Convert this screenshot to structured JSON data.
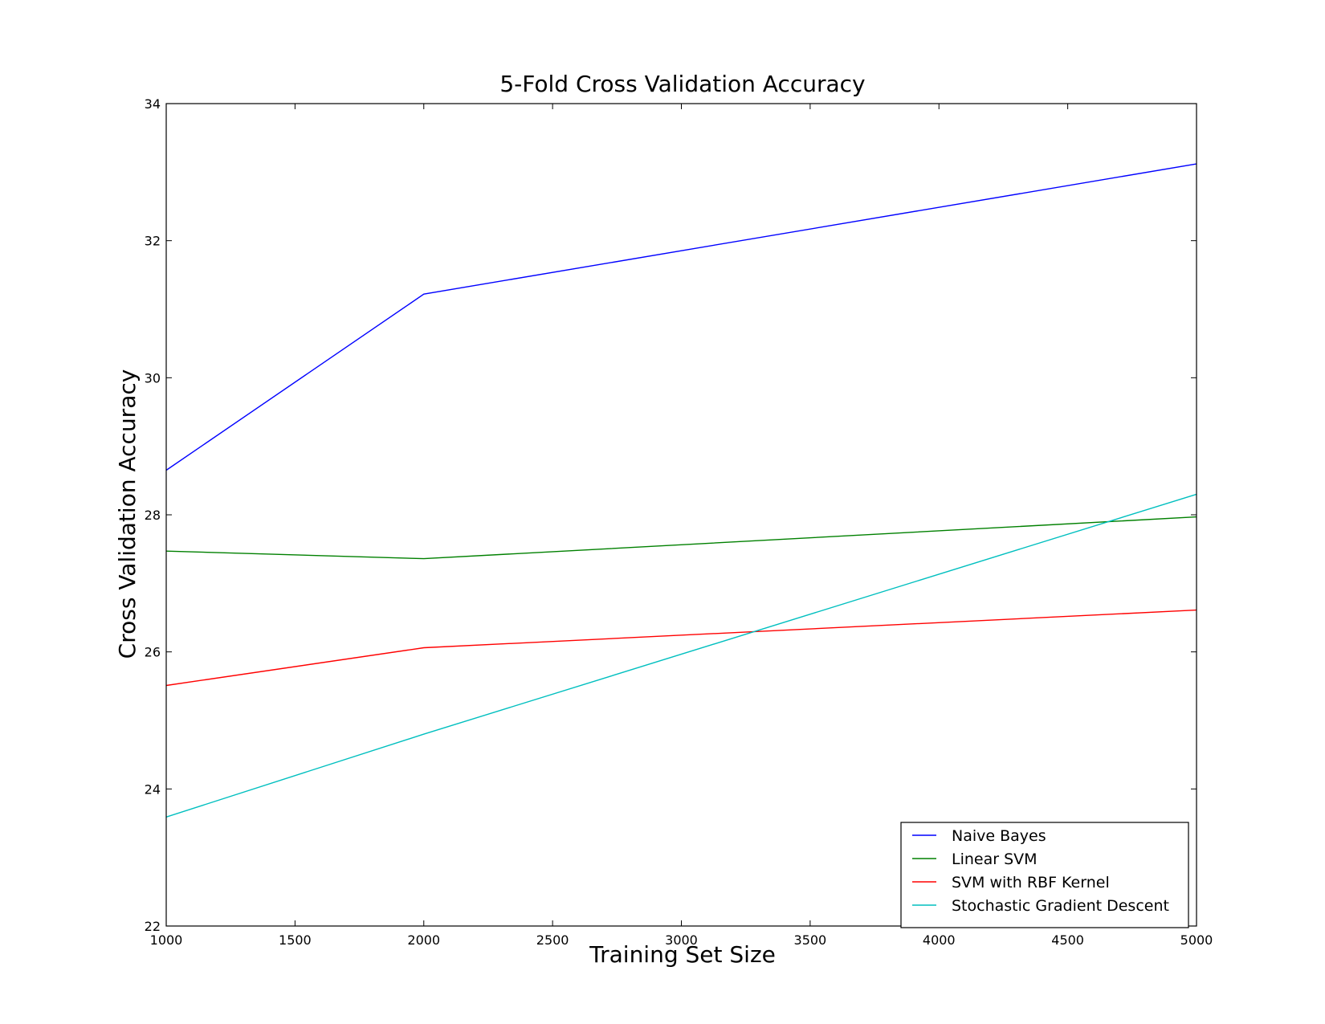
{
  "chart_data": {
    "type": "line",
    "title": "5-Fold Cross Validation Accuracy",
    "xlabel": "Training Set Size",
    "ylabel": "Cross Validation Accuracy",
    "xlim": [
      1000,
      5000
    ],
    "ylim": [
      22,
      34
    ],
    "xticks": [
      1000,
      1500,
      2000,
      2500,
      3000,
      3500,
      4000,
      4500,
      5000
    ],
    "yticks": [
      22,
      24,
      26,
      28,
      30,
      32,
      34
    ],
    "grid": false,
    "legend_position": "lower-right",
    "x": [
      1000,
      2000,
      5000
    ],
    "series": [
      {
        "name": "Naive Bayes",
        "color": "#0000ff",
        "values": [
          28.65,
          31.22,
          33.12
        ]
      },
      {
        "name": "Linear SVM",
        "color": "#008000",
        "values": [
          27.47,
          27.36,
          27.97
        ]
      },
      {
        "name": "SVM with RBF Kernel",
        "color": "#ff0000",
        "values": [
          25.51,
          26.06,
          26.61
        ]
      },
      {
        "name": "Stochastic Gradient Descent",
        "color": "#00bfbf",
        "values": [
          23.59,
          24.8,
          28.3
        ]
      }
    ]
  }
}
